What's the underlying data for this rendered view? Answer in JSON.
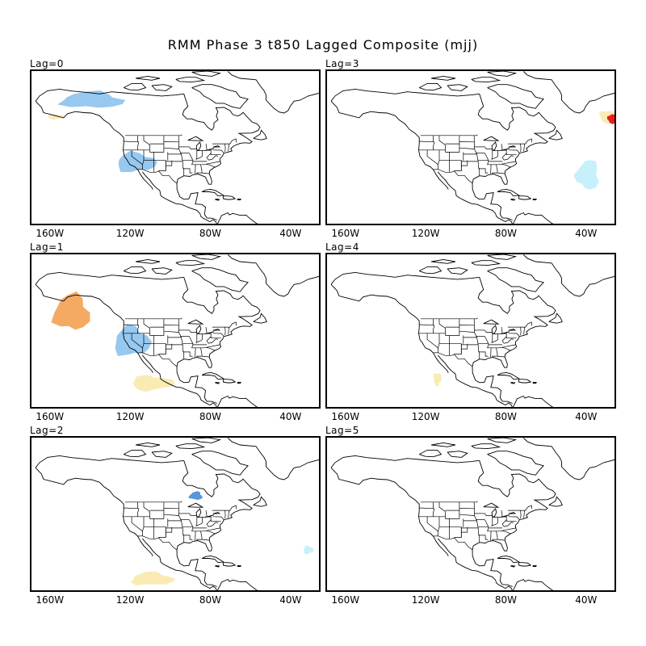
{
  "title": "RMM Phase 3 t850 Lagged Composite (mjj)",
  "lon_ticks": [
    "160W",
    "120W",
    "80W",
    "40W"
  ],
  "colors": {
    "light_blue": "#c8f0fa",
    "mid_blue": "#96c8f0",
    "dark_blue": "#5a96dc",
    "light_yellow": "#faebb4",
    "orange": "#f5aa64",
    "red": "#e61e1e",
    "coast": "#000000"
  },
  "panels": [
    {
      "label": "Lag=0",
      "anomalies": [
        {
          "lon": -140,
          "lat": 66,
          "tone": "mid_blue"
        },
        {
          "lon": -118,
          "lat": 36,
          "tone": "mid_blue"
        },
        {
          "lon": -158,
          "lat": 58,
          "tone": "light_yellow"
        }
      ]
    },
    {
      "label": "Lag=3",
      "anomalies": [
        {
          "lon": -30,
          "lat": 58,
          "tone": "light_yellow"
        },
        {
          "lon": -28,
          "lat": 57,
          "tone": "red"
        },
        {
          "lon": -40,
          "lat": 30,
          "tone": "light_blue"
        }
      ]
    },
    {
      "label": "Lag=1",
      "anomalies": [
        {
          "lon": -150,
          "lat": 52,
          "tone": "orange"
        },
        {
          "lon": -120,
          "lat": 38,
          "tone": "mid_blue"
        },
        {
          "lon": -110,
          "lat": 18,
          "tone": "light_yellow"
        }
      ]
    },
    {
      "label": "Lag=4",
      "anomalies": [
        {
          "lon": -115,
          "lat": 20,
          "tone": "light_yellow"
        }
      ]
    },
    {
      "label": "Lag=2",
      "anomalies": [
        {
          "lon": -88,
          "lat": 52,
          "tone": "dark_blue"
        },
        {
          "lon": -110,
          "lat": 12,
          "tone": "light_yellow"
        },
        {
          "lon": -32,
          "lat": 26,
          "tone": "light_blue"
        }
      ]
    },
    {
      "label": "Lag=5",
      "anomalies": []
    }
  ]
}
